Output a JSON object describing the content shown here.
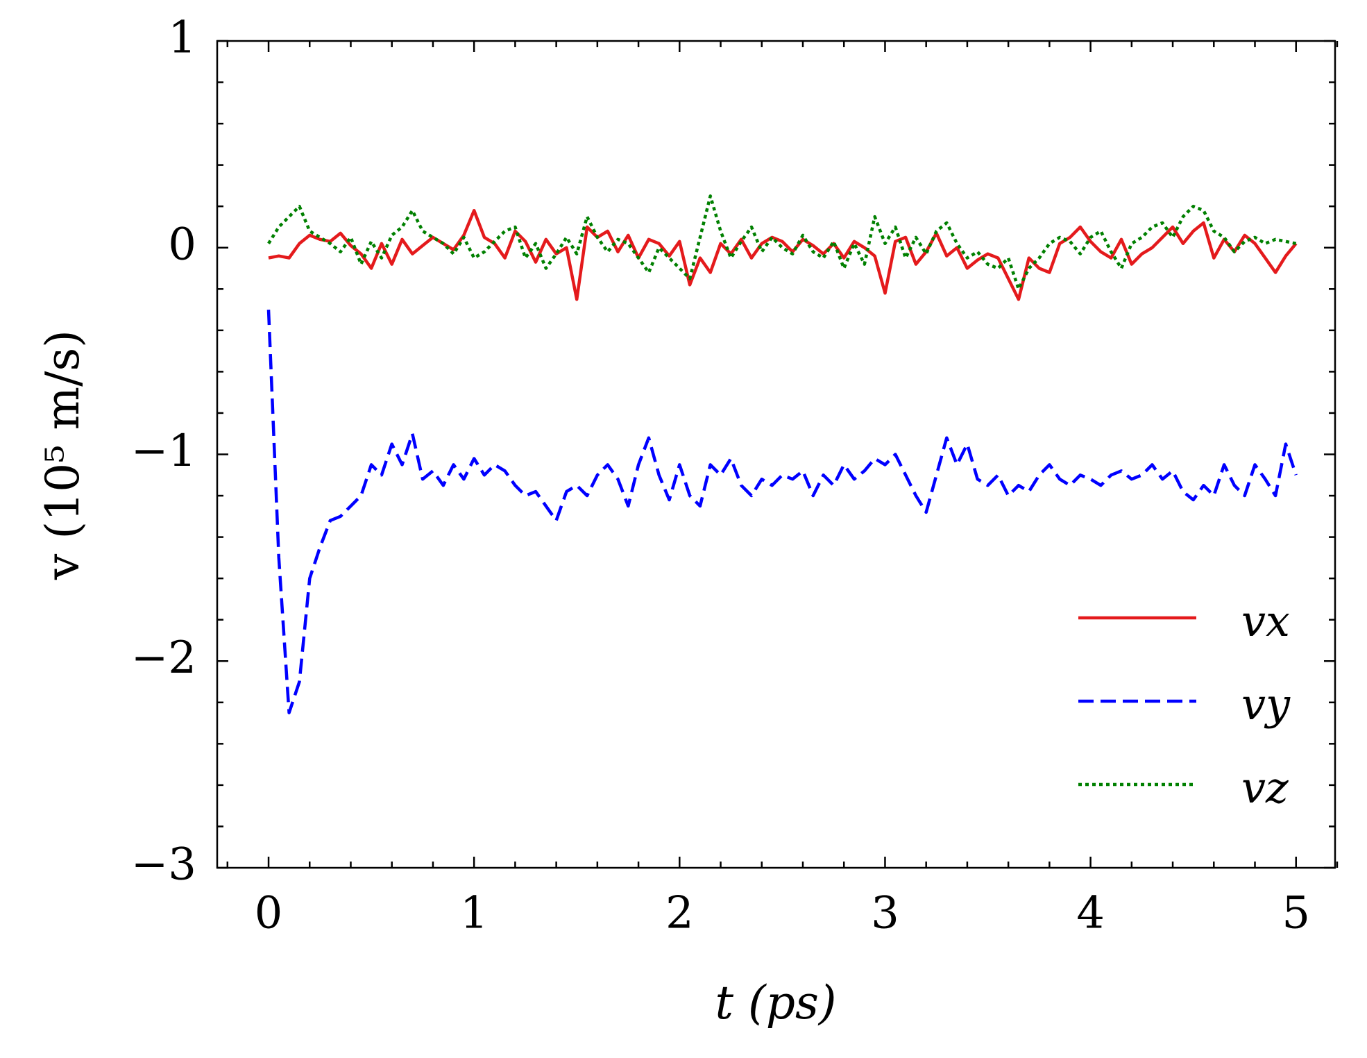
{
  "chart_data": {
    "type": "line",
    "xlabel": "t (ps)",
    "ylabel": "v (10⁵ m/s)",
    "x": [
      0,
      0.05,
      0.1,
      0.15,
      0.2,
      0.25,
      0.3,
      0.35,
      0.4,
      0.45,
      0.5,
      0.55,
      0.6,
      0.65,
      0.7,
      0.75,
      0.8,
      0.85,
      0.9,
      0.95,
      1,
      1.05,
      1.1,
      1.15,
      1.2,
      1.25,
      1.3,
      1.35,
      1.4,
      1.45,
      1.5,
      1.55,
      1.6,
      1.65,
      1.7,
      1.75,
      1.8,
      1.85,
      1.9,
      1.95,
      2,
      2.05,
      2.1,
      2.15,
      2.2,
      2.25,
      2.3,
      2.35,
      2.4,
      2.45,
      2.5,
      2.55,
      2.6,
      2.65,
      2.7,
      2.75,
      2.8,
      2.85,
      2.9,
      2.95,
      3,
      3.05,
      3.1,
      3.15,
      3.2,
      3.25,
      3.3,
      3.35,
      3.4,
      3.45,
      3.5,
      3.55,
      3.6,
      3.65,
      3.7,
      3.75,
      3.8,
      3.85,
      3.9,
      3.95,
      4,
      4.05,
      4.1,
      4.15,
      4.2,
      4.25,
      4.3,
      4.35,
      4.4,
      4.45,
      4.5,
      4.55,
      4.6,
      4.65,
      4.7,
      4.75,
      4.8,
      4.85,
      4.9,
      4.95,
      5
    ],
    "series": [
      {
        "name": "vx",
        "color": "#e41a1c",
        "linestyle": "solid",
        "values": [
          -0.05,
          -0.04,
          -0.05,
          0.02,
          0.06,
          0.04,
          0.03,
          0.07,
          0.01,
          -0.03,
          -0.1,
          0.02,
          -0.08,
          0.04,
          -0.03,
          0.01,
          0.05,
          0.02,
          -0.01,
          0.06,
          0.18,
          0.05,
          0.02,
          -0.05,
          0.08,
          0.03,
          -0.07,
          0.04,
          -0.03,
          0.0,
          -0.25,
          0.1,
          0.05,
          0.08,
          -0.02,
          0.06,
          -0.05,
          0.04,
          0.02,
          -0.04,
          0.03,
          -0.18,
          -0.05,
          -0.12,
          0.02,
          -0.03,
          0.04,
          -0.05,
          0.02,
          0.05,
          0.03,
          -0.02,
          0.04,
          0.01,
          -0.03,
          0.02,
          -0.05,
          0.03,
          0.0,
          -0.04,
          -0.22,
          0.03,
          0.05,
          -0.08,
          -0.02,
          0.07,
          -0.04,
          0.0,
          -0.1,
          -0.06,
          -0.03,
          -0.05,
          -0.15,
          -0.25,
          -0.05,
          -0.1,
          -0.12,
          0.02,
          0.05,
          0.1,
          0.03,
          -0.02,
          -0.05,
          0.04,
          -0.08,
          -0.03,
          0.0,
          0.05,
          0.1,
          0.02,
          0.08,
          0.12,
          -0.05,
          0.04,
          -0.02,
          0.06,
          0.02,
          -0.05,
          -0.12,
          -0.04,
          0.02
        ]
      },
      {
        "name": "vy",
        "color": "#0000ff",
        "linestyle": "dashed",
        "values": [
          -0.3,
          -1.5,
          -2.25,
          -2.1,
          -1.6,
          -1.45,
          -1.32,
          -1.3,
          -1.25,
          -1.2,
          -1.05,
          -1.1,
          -0.95,
          -1.05,
          -0.9,
          -1.12,
          -1.08,
          -1.15,
          -1.05,
          -1.12,
          -1.02,
          -1.1,
          -1.05,
          -1.08,
          -1.15,
          -1.2,
          -1.18,
          -1.25,
          -1.32,
          -1.18,
          -1.15,
          -1.2,
          -1.1,
          -1.05,
          -1.12,
          -1.25,
          -1.05,
          -0.92,
          -1.1,
          -1.22,
          -1.05,
          -1.2,
          -1.25,
          -1.05,
          -1.1,
          -1.02,
          -1.15,
          -1.2,
          -1.12,
          -1.15,
          -1.1,
          -1.12,
          -1.08,
          -1.2,
          -1.1,
          -1.15,
          -1.05,
          -1.12,
          -1.08,
          -1.02,
          -1.05,
          -1.0,
          -1.1,
          -1.2,
          -1.28,
          -1.1,
          -0.92,
          -1.05,
          -0.95,
          -1.12,
          -1.15,
          -1.1,
          -1.2,
          -1.15,
          -1.18,
          -1.1,
          -1.05,
          -1.12,
          -1.15,
          -1.1,
          -1.12,
          -1.15,
          -1.1,
          -1.08,
          -1.12,
          -1.1,
          -1.05,
          -1.12,
          -1.08,
          -1.18,
          -1.22,
          -1.15,
          -1.2,
          -1.05,
          -1.15,
          -1.2,
          -1.05,
          -1.12,
          -1.2,
          -0.95,
          -1.1
        ]
      },
      {
        "name": "vz",
        "color": "#008000",
        "linestyle": "dotted",
        "values": [
          0.02,
          0.1,
          0.15,
          0.2,
          0.08,
          0.05,
          0.02,
          -0.02,
          0.05,
          -0.08,
          0.03,
          -0.05,
          0.06,
          0.1,
          0.18,
          0.08,
          0.05,
          0.02,
          -0.03,
          0.05,
          -0.05,
          -0.02,
          0.03,
          0.08,
          0.1,
          -0.05,
          0.02,
          -0.1,
          -0.03,
          0.05,
          -0.03,
          0.15,
          0.05,
          -0.02,
          0.04,
          0.02,
          -0.05,
          -0.12,
          0.0,
          -0.05,
          -0.1,
          -0.15,
          0.05,
          0.25,
          0.08,
          -0.05,
          0.03,
          0.1,
          -0.02,
          0.05,
          0.0,
          -0.03,
          0.06,
          -0.02,
          -0.05,
          0.03,
          -0.1,
          0.02,
          -0.08,
          0.15,
          0.02,
          0.1,
          -0.05,
          0.05,
          -0.03,
          0.08,
          0.12,
          0.02,
          -0.05,
          -0.02,
          -0.08,
          -0.1,
          -0.05,
          -0.2,
          -0.1,
          -0.05,
          0.02,
          0.05,
          0.03,
          -0.03,
          0.05,
          0.08,
          -0.02,
          -0.1,
          0.02,
          0.05,
          0.1,
          0.12,
          0.05,
          0.15,
          0.2,
          0.18,
          0.08,
          0.05,
          -0.02,
          0.03,
          0.05,
          0.02,
          0.04,
          0.03,
          0.02
        ]
      }
    ],
    "xlim": [
      -0.25,
      5.19
    ],
    "xticks": [
      0,
      1,
      2,
      3,
      4,
      5
    ],
    "xminorticks": [
      -0.2,
      0.2,
      0.4,
      0.6,
      0.8,
      1.2,
      1.4,
      1.6,
      1.8,
      2.2,
      2.4,
      2.6,
      2.8,
      3.2,
      3.4,
      3.6,
      3.8,
      4.2,
      4.4,
      4.6,
      4.8,
      5.2
    ],
    "ylim": [
      -3,
      1
    ],
    "yticks": [
      {
        "value": -3,
        "label": "−3"
      },
      {
        "value": -2,
        "label": "−2"
      },
      {
        "value": -1,
        "label": "−1"
      },
      0,
      1
    ],
    "yminorticks": [
      -2.8,
      -2.6,
      -2.4,
      -2.2,
      -1.8,
      -1.6,
      -1.4,
      -1.2,
      -0.8,
      -0.6,
      -0.4,
      -0.2,
      0.2,
      0.4,
      0.6,
      0.8
    ],
    "legend": "lower right",
    "grid": false
  }
}
